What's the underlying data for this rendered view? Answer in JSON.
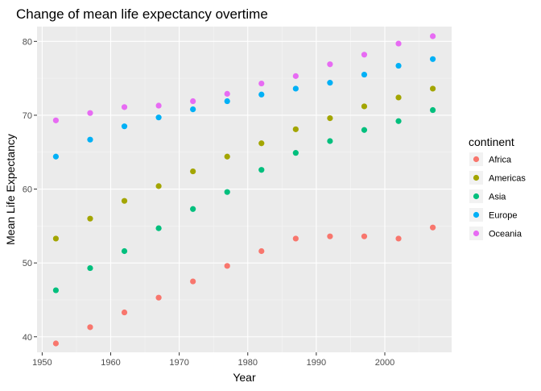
{
  "chart_data": {
    "type": "scatter",
    "title": "Change of mean life expectancy overtime",
    "xlabel": "Year",
    "ylabel": "Mean Life Expectancy",
    "xlim": [
      1949.25,
      2009.75
    ],
    "ylim": [
      37.9,
      82.0
    ],
    "xticks": [
      1950,
      1960,
      1970,
      1980,
      1990,
      2000
    ],
    "yticks": [
      40,
      50,
      60,
      70,
      80
    ],
    "grid": true,
    "legend_title": "continent",
    "legend_position": "right",
    "x": [
      1952,
      1957,
      1962,
      1967,
      1972,
      1977,
      1982,
      1987,
      1992,
      1997,
      2002,
      2007
    ],
    "series": [
      {
        "name": "Africa",
        "color": "#F8766D",
        "values": [
          39.1,
          41.3,
          43.3,
          45.3,
          47.5,
          49.6,
          51.6,
          53.3,
          53.6,
          53.6,
          53.3,
          54.8
        ]
      },
      {
        "name": "Americas",
        "color": "#A3A500",
        "values": [
          53.3,
          56.0,
          58.4,
          60.4,
          62.4,
          64.4,
          66.2,
          68.1,
          69.6,
          71.2,
          72.4,
          73.6
        ]
      },
      {
        "name": "Asia",
        "color": "#00BF7D",
        "values": [
          46.3,
          49.3,
          51.6,
          54.7,
          57.3,
          59.6,
          62.6,
          64.9,
          66.5,
          68.0,
          69.2,
          70.7
        ]
      },
      {
        "name": "Europe",
        "color": "#00B0F6",
        "values": [
          64.4,
          66.7,
          68.5,
          69.7,
          70.8,
          71.9,
          72.8,
          73.6,
          74.4,
          75.5,
          76.7,
          77.6
        ]
      },
      {
        "name": "Oceania",
        "color": "#E76BF3",
        "values": [
          69.3,
          70.3,
          71.1,
          71.3,
          71.9,
          72.9,
          74.3,
          75.3,
          76.9,
          78.2,
          79.7,
          80.7
        ]
      }
    ]
  }
}
